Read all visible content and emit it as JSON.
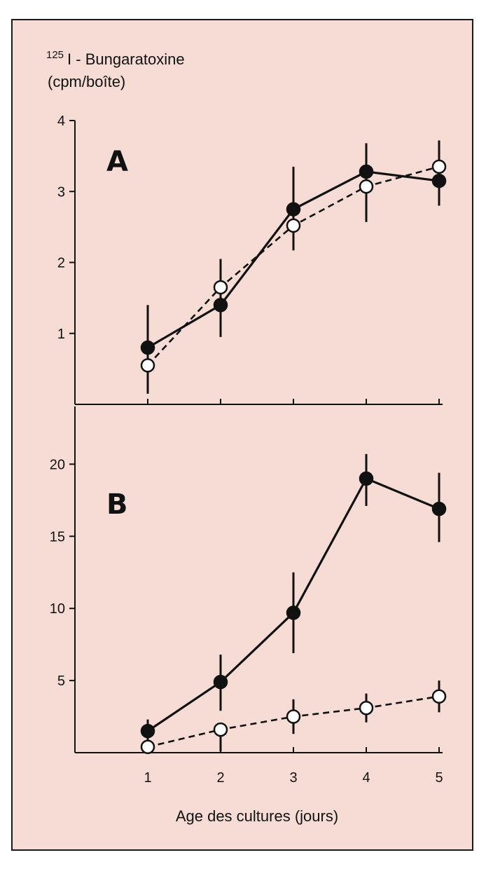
{
  "colors": {
    "panel_bg": "#f7dcd6",
    "frame": "#1a1a1a",
    "ink": "#111111",
    "open_fill": "#ffffff"
  },
  "y_title": {
    "superscript": "125",
    "line1": "I - Bungaratoxine",
    "line2": "(cpm/boîte)"
  },
  "x_title": "Age des cultures (jours)",
  "chart_data": [
    {
      "type": "line",
      "panel": "A",
      "title": "",
      "x": [
        1,
        2,
        3,
        4,
        5
      ],
      "xlim": [
        0,
        5
      ],
      "xticks": [
        1,
        2,
        3,
        4,
        5
      ],
      "ylim": [
        0,
        4
      ],
      "yticks": [
        1,
        2,
        3,
        4
      ],
      "grid": false,
      "series": [
        {
          "marker": "filled-circle",
          "line": "solid",
          "values": [
            0.8,
            1.4,
            2.75,
            3.28,
            3.15
          ],
          "err_low": [
            0.45,
            0.45,
            0.45,
            0.6,
            0.35
          ],
          "err_high": [
            0.6,
            0.65,
            0.6,
            0.4,
            0.0
          ]
        },
        {
          "marker": "open-circle",
          "line": "dashed",
          "values": [
            0.55,
            1.65,
            2.52,
            3.07,
            3.35
          ],
          "err_low": [
            0.4,
            0.3,
            0.35,
            0.5,
            0.55
          ],
          "err_high": [
            0.0,
            0.4,
            0.0,
            0.0,
            0.37
          ]
        }
      ]
    },
    {
      "type": "line",
      "panel": "B",
      "title": "",
      "x": [
        1,
        2,
        3,
        4,
        5
      ],
      "xlim": [
        0,
        5
      ],
      "xticks": [
        1,
        2,
        3,
        4,
        5
      ],
      "ylim": [
        0,
        24
      ],
      "yticks": [
        5,
        10,
        15,
        20
      ],
      "grid": false,
      "series": [
        {
          "marker": "filled-circle",
          "line": "solid",
          "values": [
            1.5,
            4.9,
            9.7,
            19.0,
            16.9
          ],
          "err_low": [
            0.8,
            2.0,
            2.8,
            1.9,
            2.3
          ],
          "err_high": [
            0.8,
            1.9,
            2.8,
            1.7,
            2.5
          ]
        },
        {
          "marker": "open-circle",
          "line": "dashed",
          "values": [
            0.4,
            1.6,
            2.5,
            3.1,
            3.9
          ],
          "err_low": [
            0.0,
            1.5,
            1.2,
            1.0,
            1.1
          ],
          "err_high": [
            0.0,
            0.0,
            1.2,
            1.0,
            1.1
          ]
        }
      ]
    }
  ]
}
